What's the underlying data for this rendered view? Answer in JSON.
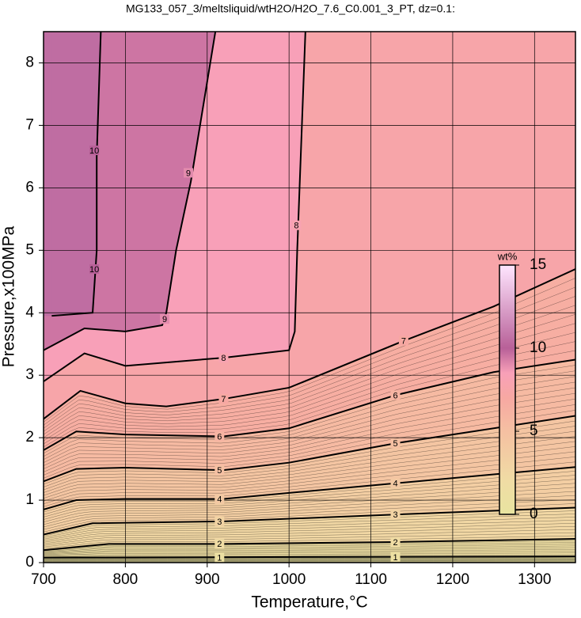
{
  "chart_data": {
    "type": "contour",
    "title": "MG133_057_3/meltsliquid/wtH2O/H2O_7.6_C0.001_3_PT, dz=0.1:",
    "x_label": "Temperature,°C",
    "y_label": "Pressure,x100MPa",
    "xlim": [
      700,
      1350
    ],
    "ylim": [
      0,
      8.5
    ],
    "xticks": [
      700,
      800,
      900,
      1000,
      1100,
      1200,
      1300
    ],
    "yticks": [
      0,
      1,
      2,
      3,
      4,
      5,
      6,
      7,
      8
    ],
    "grid": true,
    "colorbar": {
      "title": "wt%",
      "lim": [
        0,
        15
      ],
      "ticks": [
        0,
        5,
        10,
        15
      ]
    },
    "colormap": [
      {
        "value": 0,
        "color": "#e8e4a0"
      },
      {
        "value": 2,
        "color": "#f0dca4"
      },
      {
        "value": 5,
        "color": "#f5c0a2"
      },
      {
        "value": 7,
        "color": "#f7a8a2"
      },
      {
        "value": 8.5,
        "color": "#f8a0b8"
      },
      {
        "value": 10,
        "color": "#b86098"
      },
      {
        "value": 15,
        "color": "#ffe6ff"
      }
    ],
    "contours": [
      {
        "level": 1,
        "x": [
          700,
          1350
        ],
        "y": [
          0.08,
          0.1
        ],
        "labels": [
          [
            915,
            0.08
          ],
          [
            1130,
            0.09
          ]
        ]
      },
      {
        "level": 2,
        "x": [
          700,
          780,
          920,
          1130,
          1350
        ],
        "y": [
          0.2,
          0.3,
          0.3,
          0.33,
          0.38
        ],
        "labels": [
          [
            915,
            0.3
          ],
          [
            1130,
            0.33
          ]
        ]
      },
      {
        "level": 3,
        "x": [
          700,
          760,
          920,
          1130,
          1350
        ],
        "y": [
          0.45,
          0.63,
          0.66,
          0.77,
          0.88
        ],
        "labels": [
          [
            915,
            0.66
          ],
          [
            1130,
            0.77
          ]
        ]
      },
      {
        "level": 4,
        "x": [
          700,
          740,
          800,
          920,
          1130,
          1350
        ],
        "y": [
          0.85,
          1.0,
          1.02,
          1.02,
          1.27,
          1.53
        ],
        "labels": [
          [
            915,
            1.02
          ],
          [
            1130,
            1.27
          ]
        ]
      },
      {
        "level": 5,
        "x": [
          700,
          740,
          800,
          920,
          1000,
          1130,
          1350
        ],
        "y": [
          1.3,
          1.5,
          1.52,
          1.48,
          1.6,
          1.91,
          2.35
        ],
        "labels": [
          [
            915,
            1.48
          ],
          [
            1130,
            1.91
          ]
        ]
      },
      {
        "level": 6,
        "x": [
          700,
          740,
          800,
          920,
          1000,
          1130,
          1250,
          1350
        ],
        "y": [
          1.8,
          2.1,
          2.05,
          2.02,
          2.15,
          2.68,
          3.05,
          3.25
        ],
        "labels": [
          [
            915,
            2.02
          ],
          [
            1130,
            2.68
          ]
        ]
      },
      {
        "level": 7,
        "x": [
          700,
          745,
          800,
          850,
          920,
          1000,
          1140,
          1250,
          1350
        ],
        "y": [
          2.3,
          2.75,
          2.55,
          2.5,
          2.62,
          2.8,
          3.55,
          4.1,
          4.7
        ],
        "labels": [
          [
            920,
            2.62
          ],
          [
            1140,
            3.55
          ]
        ]
      },
      {
        "level": 8,
        "x": [
          700,
          750,
          800,
          920,
          1000,
          1007,
          1010,
          1020
        ],
        "y": [
          2.9,
          3.35,
          3.15,
          3.28,
          3.4,
          3.7,
          5.0,
          8.5
        ],
        "labels": [
          [
            920,
            3.28
          ],
          [
            1009,
            5.4
          ]
        ]
      },
      {
        "level": 9,
        "x": [
          700,
          750,
          800,
          845,
          850,
          862,
          880,
          910
        ],
        "y": [
          3.4,
          3.75,
          3.7,
          3.8,
          4.0,
          5.0,
          6.1,
          8.5
        ],
        "labels": [
          [
            848,
            3.9
          ],
          [
            877,
            6.24
          ]
        ]
      },
      {
        "level": 10,
        "x": [
          710,
          760,
          765,
          765,
          770
        ],
        "y": [
          3.95,
          4.0,
          5.0,
          6.5,
          8.5
        ],
        "labels": [
          [
            762,
            4.7
          ],
          [
            762,
            6.6
          ]
        ]
      }
    ]
  }
}
